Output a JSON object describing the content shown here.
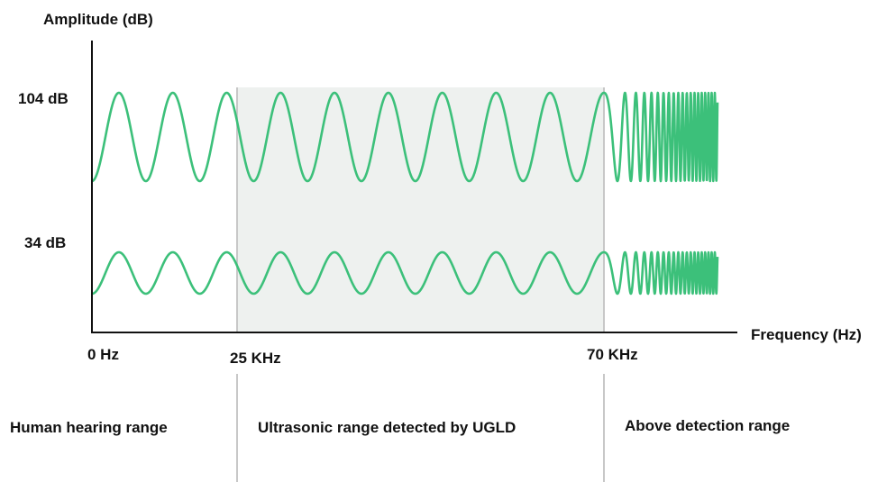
{
  "axes": {
    "y_title": "Amplitude (dB)",
    "x_title": "Frequency (Hz)"
  },
  "amplitude_levels": {
    "high": "104 dB",
    "low": "34 dB"
  },
  "frequency_marks": {
    "start": "0 Hz",
    "lower_limit": "25 KHz",
    "upper_limit": "70 KHz"
  },
  "ranges": {
    "human": "Human hearing range",
    "ultrasonic": "Ultrasonic range detected by UGLD",
    "above": "Above detection range"
  },
  "colors": {
    "wave": "#3cc07a",
    "band": "#eef1ef",
    "axis": "#111111",
    "divider": "#c8c8c8"
  }
}
